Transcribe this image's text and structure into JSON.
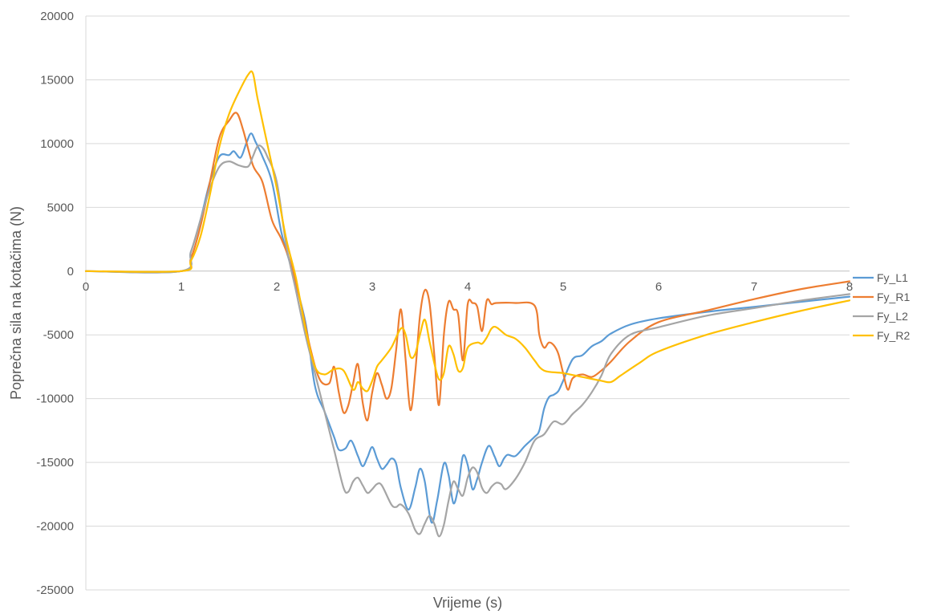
{
  "chart_data": {
    "type": "line",
    "title": "",
    "xlabel": "Vrijeme (s)",
    "ylabel": "Poprečna sila na kotačima (N)",
    "xlim": [
      0,
      8
    ],
    "ylim": [
      -25000,
      20000
    ],
    "x_ticks": [
      0,
      1,
      2,
      3,
      4,
      5,
      6,
      7,
      8
    ],
    "y_ticks": [
      -25000,
      -20000,
      -15000,
      -10000,
      -5000,
      0,
      5000,
      10000,
      15000,
      20000
    ],
    "grid": "horizontal",
    "legend_position": "right",
    "series": [
      {
        "name": "Fy_L1",
        "color": "#5B9BD5",
        "points": [
          [
            0,
            0
          ],
          [
            1.0,
            0
          ],
          [
            1.1,
            1500
          ],
          [
            1.2,
            4000
          ],
          [
            1.3,
            7000
          ],
          [
            1.4,
            9000
          ],
          [
            1.5,
            9100
          ],
          [
            1.55,
            9400
          ],
          [
            1.62,
            8900
          ],
          [
            1.68,
            10000
          ],
          [
            1.73,
            10800
          ],
          [
            1.78,
            10100
          ],
          [
            1.85,
            9000
          ],
          [
            1.95,
            7000
          ],
          [
            2.05,
            3000
          ],
          [
            2.15,
            300
          ],
          [
            2.3,
            -4000
          ],
          [
            2.4,
            -9000
          ],
          [
            2.5,
            -11000
          ],
          [
            2.6,
            -13000
          ],
          [
            2.65,
            -14000
          ],
          [
            2.72,
            -13900
          ],
          [
            2.78,
            -13300
          ],
          [
            2.85,
            -14500
          ],
          [
            2.9,
            -15300
          ],
          [
            2.95,
            -14600
          ],
          [
            3.0,
            -13800
          ],
          [
            3.05,
            -14700
          ],
          [
            3.1,
            -15500
          ],
          [
            3.15,
            -15200
          ],
          [
            3.2,
            -14700
          ],
          [
            3.25,
            -15100
          ],
          [
            3.3,
            -17000
          ],
          [
            3.38,
            -18700
          ],
          [
            3.45,
            -17000
          ],
          [
            3.5,
            -15500
          ],
          [
            3.55,
            -16500
          ],
          [
            3.62,
            -19700
          ],
          [
            3.68,
            -18000
          ],
          [
            3.75,
            -15100
          ],
          [
            3.8,
            -16000
          ],
          [
            3.85,
            -18200
          ],
          [
            3.9,
            -17000
          ],
          [
            3.95,
            -14500
          ],
          [
            4.0,
            -15200
          ],
          [
            4.05,
            -17100
          ],
          [
            4.1,
            -16300
          ],
          [
            4.15,
            -15000
          ],
          [
            4.22,
            -13700
          ],
          [
            4.28,
            -14500
          ],
          [
            4.33,
            -15300
          ],
          [
            4.38,
            -14700
          ],
          [
            4.42,
            -14400
          ],
          [
            4.5,
            -14500
          ],
          [
            4.6,
            -13700
          ],
          [
            4.7,
            -13000
          ],
          [
            4.75,
            -12500
          ],
          [
            4.8,
            -10800
          ],
          [
            4.85,
            -9900
          ],
          [
            4.9,
            -9700
          ],
          [
            4.95,
            -9400
          ],
          [
            5.0,
            -8600
          ],
          [
            5.1,
            -6900
          ],
          [
            5.2,
            -6600
          ],
          [
            5.3,
            -5900
          ],
          [
            5.4,
            -5500
          ],
          [
            5.5,
            -4900
          ],
          [
            5.7,
            -4200
          ],
          [
            6.0,
            -3700
          ],
          [
            6.5,
            -3200
          ],
          [
            7.0,
            -2800
          ],
          [
            7.5,
            -2400
          ],
          [
            8.0,
            -2000
          ]
        ]
      },
      {
        "name": "Fy_R1",
        "color": "#ED7D31",
        "points": [
          [
            0,
            0
          ],
          [
            1.0,
            0
          ],
          [
            1.1,
            1000
          ],
          [
            1.2,
            3500
          ],
          [
            1.3,
            7000
          ],
          [
            1.4,
            10500
          ],
          [
            1.5,
            11800
          ],
          [
            1.58,
            12400
          ],
          [
            1.65,
            11000
          ],
          [
            1.75,
            8300
          ],
          [
            1.85,
            7000
          ],
          [
            1.95,
            4000
          ],
          [
            2.05,
            2500
          ],
          [
            2.15,
            500
          ],
          [
            2.25,
            -2500
          ],
          [
            2.35,
            -6000
          ],
          [
            2.45,
            -8500
          ],
          [
            2.55,
            -8800
          ],
          [
            2.6,
            -7500
          ],
          [
            2.65,
            -9500
          ],
          [
            2.7,
            -11100
          ],
          [
            2.75,
            -10500
          ],
          [
            2.8,
            -8800
          ],
          [
            2.85,
            -7300
          ],
          [
            2.9,
            -10300
          ],
          [
            2.95,
            -11700
          ],
          [
            3.0,
            -9500
          ],
          [
            3.05,
            -8000
          ],
          [
            3.1,
            -8900
          ],
          [
            3.15,
            -10000
          ],
          [
            3.2,
            -9200
          ],
          [
            3.25,
            -6200
          ],
          [
            3.3,
            -3000
          ],
          [
            3.35,
            -7000
          ],
          [
            3.4,
            -10900
          ],
          [
            3.45,
            -8000
          ],
          [
            3.5,
            -3500
          ],
          [
            3.55,
            -1500
          ],
          [
            3.6,
            -2500
          ],
          [
            3.65,
            -6500
          ],
          [
            3.7,
            -10500
          ],
          [
            3.75,
            -5000
          ],
          [
            3.8,
            -2400
          ],
          [
            3.85,
            -3000
          ],
          [
            3.9,
            -3400
          ],
          [
            3.95,
            -7000
          ],
          [
            4.0,
            -2600
          ],
          [
            4.05,
            -2500
          ],
          [
            4.1,
            -2800
          ],
          [
            4.15,
            -4700
          ],
          [
            4.2,
            -2300
          ],
          [
            4.25,
            -2600
          ],
          [
            4.3,
            -2500
          ],
          [
            4.5,
            -2500
          ],
          [
            4.7,
            -2700
          ],
          [
            4.75,
            -5000
          ],
          [
            4.8,
            -6000
          ],
          [
            4.85,
            -5600
          ],
          [
            4.9,
            -5800
          ],
          [
            4.95,
            -6500
          ],
          [
            5.0,
            -8000
          ],
          [
            5.05,
            -9300
          ],
          [
            5.1,
            -8400
          ],
          [
            5.2,
            -8100
          ],
          [
            5.3,
            -8300
          ],
          [
            5.4,
            -7800
          ],
          [
            5.5,
            -7100
          ],
          [
            5.7,
            -5500
          ],
          [
            6.0,
            -4000
          ],
          [
            6.5,
            -3100
          ],
          [
            7.0,
            -2200
          ],
          [
            7.5,
            -1400
          ],
          [
            8.0,
            -800
          ]
        ]
      },
      {
        "name": "Fy_L2",
        "color": "#A5A5A5",
        "points": [
          [
            0,
            0
          ],
          [
            1.0,
            0
          ],
          [
            1.1,
            1500
          ],
          [
            1.2,
            4000
          ],
          [
            1.3,
            6500
          ],
          [
            1.4,
            8200
          ],
          [
            1.5,
            8600
          ],
          [
            1.6,
            8300
          ],
          [
            1.7,
            8200
          ],
          [
            1.75,
            9000
          ],
          [
            1.8,
            9800
          ],
          [
            1.85,
            9700
          ],
          [
            1.9,
            9000
          ],
          [
            2.0,
            7000
          ],
          [
            2.1,
            2000
          ],
          [
            2.2,
            -1500
          ],
          [
            2.3,
            -5000
          ],
          [
            2.4,
            -8000
          ],
          [
            2.5,
            -11000
          ],
          [
            2.6,
            -14000
          ],
          [
            2.7,
            -17000
          ],
          [
            2.75,
            -17300
          ],
          [
            2.8,
            -16500
          ],
          [
            2.85,
            -16200
          ],
          [
            2.9,
            -16800
          ],
          [
            2.95,
            -17400
          ],
          [
            3.0,
            -17100
          ],
          [
            3.05,
            -16700
          ],
          [
            3.1,
            -16800
          ],
          [
            3.2,
            -18300
          ],
          [
            3.25,
            -18500
          ],
          [
            3.3,
            -18300
          ],
          [
            3.38,
            -19000
          ],
          [
            3.45,
            -20300
          ],
          [
            3.5,
            -20600
          ],
          [
            3.55,
            -19800
          ],
          [
            3.6,
            -19200
          ],
          [
            3.65,
            -19800
          ],
          [
            3.7,
            -20800
          ],
          [
            3.75,
            -19900
          ],
          [
            3.8,
            -18000
          ],
          [
            3.85,
            -16500
          ],
          [
            3.9,
            -17100
          ],
          [
            3.95,
            -17600
          ],
          [
            4.0,
            -16200
          ],
          [
            4.05,
            -15400
          ],
          [
            4.1,
            -15800
          ],
          [
            4.15,
            -17000
          ],
          [
            4.2,
            -17400
          ],
          [
            4.25,
            -16900
          ],
          [
            4.3,
            -16600
          ],
          [
            4.35,
            -16700
          ],
          [
            4.4,
            -17100
          ],
          [
            4.5,
            -16300
          ],
          [
            4.6,
            -15000
          ],
          [
            4.7,
            -13300
          ],
          [
            4.8,
            -12800
          ],
          [
            4.9,
            -11800
          ],
          [
            5.0,
            -12000
          ],
          [
            5.1,
            -11200
          ],
          [
            5.2,
            -10500
          ],
          [
            5.3,
            -9500
          ],
          [
            5.4,
            -8200
          ],
          [
            5.5,
            -6500
          ],
          [
            5.7,
            -5000
          ],
          [
            6.0,
            -4400
          ],
          [
            6.5,
            -3500
          ],
          [
            7.0,
            -2900
          ],
          [
            7.5,
            -2300
          ],
          [
            8.0,
            -1800
          ]
        ]
      },
      {
        "name": "Fy_R2",
        "color": "#FFC000",
        "points": [
          [
            0,
            0
          ],
          [
            1.0,
            0
          ],
          [
            1.1,
            800
          ],
          [
            1.2,
            2700
          ],
          [
            1.3,
            6000
          ],
          [
            1.4,
            9800
          ],
          [
            1.5,
            12300
          ],
          [
            1.6,
            14000
          ],
          [
            1.7,
            15400
          ],
          [
            1.75,
            15500
          ],
          [
            1.8,
            13500
          ],
          [
            1.9,
            10000
          ],
          [
            2.0,
            6500
          ],
          [
            2.1,
            2500
          ],
          [
            2.2,
            -500
          ],
          [
            2.3,
            -4500
          ],
          [
            2.4,
            -7500
          ],
          [
            2.5,
            -8100
          ],
          [
            2.6,
            -7700
          ],
          [
            2.7,
            -7800
          ],
          [
            2.8,
            -9300
          ],
          [
            2.85,
            -8700
          ],
          [
            2.9,
            -9200
          ],
          [
            2.95,
            -9400
          ],
          [
            3.0,
            -8600
          ],
          [
            3.05,
            -7500
          ],
          [
            3.1,
            -7000
          ],
          [
            3.2,
            -6000
          ],
          [
            3.3,
            -4500
          ],
          [
            3.35,
            -5000
          ],
          [
            3.4,
            -6700
          ],
          [
            3.45,
            -6500
          ],
          [
            3.5,
            -5000
          ],
          [
            3.55,
            -3800
          ],
          [
            3.6,
            -5500
          ],
          [
            3.65,
            -7200
          ],
          [
            3.7,
            -8500
          ],
          [
            3.75,
            -8000
          ],
          [
            3.8,
            -5900
          ],
          [
            3.85,
            -6500
          ],
          [
            3.9,
            -7800
          ],
          [
            3.95,
            -7600
          ],
          [
            4.0,
            -6000
          ],
          [
            4.1,
            -5600
          ],
          [
            4.15,
            -5700
          ],
          [
            4.2,
            -5200
          ],
          [
            4.25,
            -4500
          ],
          [
            4.3,
            -4400
          ],
          [
            4.4,
            -5000
          ],
          [
            4.5,
            -5300
          ],
          [
            4.6,
            -6000
          ],
          [
            4.7,
            -7000
          ],
          [
            4.8,
            -7800
          ],
          [
            5.0,
            -8000
          ],
          [
            5.2,
            -8300
          ],
          [
            5.4,
            -8600
          ],
          [
            5.5,
            -8700
          ],
          [
            5.6,
            -8200
          ],
          [
            5.8,
            -7200
          ],
          [
            6.0,
            -6300
          ],
          [
            6.5,
            -5000
          ],
          [
            7.0,
            -4000
          ],
          [
            7.5,
            -3100
          ],
          [
            8.0,
            -2300
          ]
        ]
      }
    ]
  }
}
